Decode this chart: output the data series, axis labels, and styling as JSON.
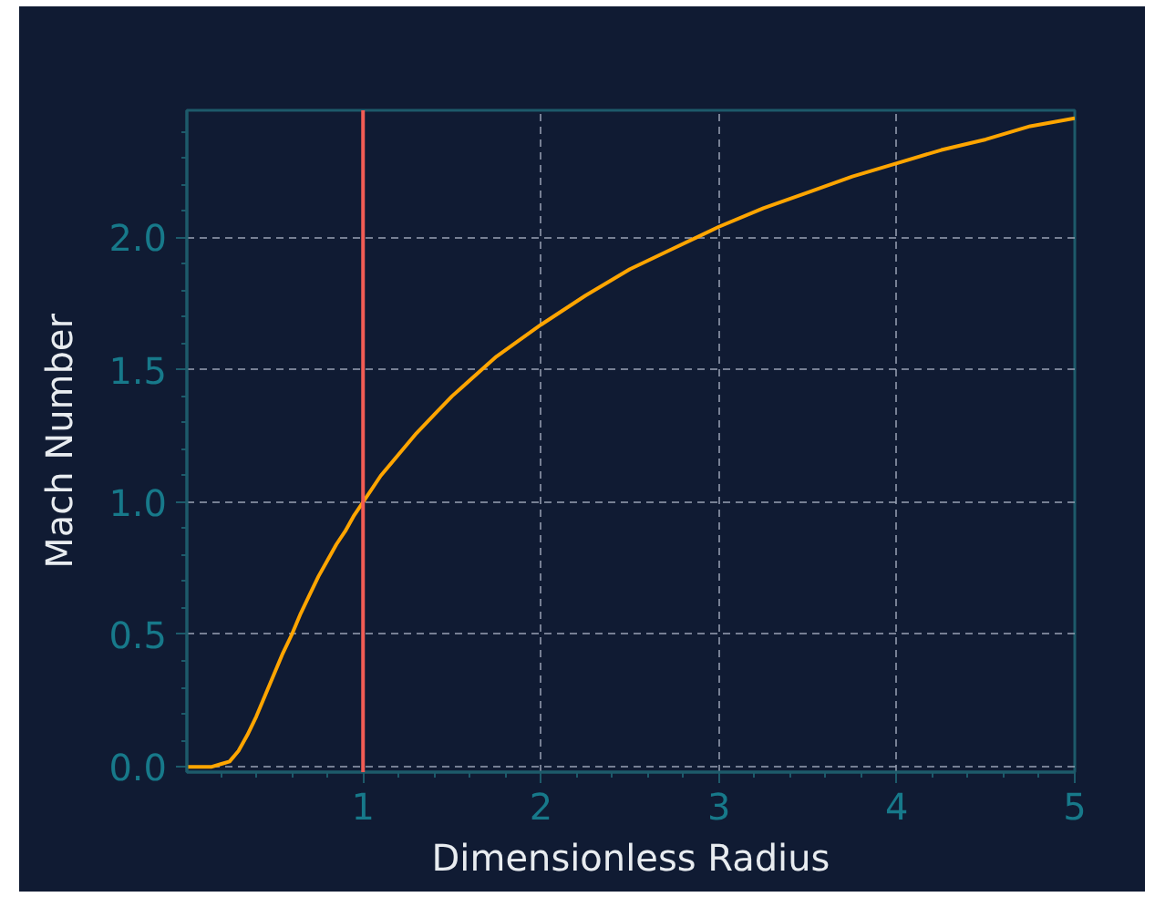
{
  "chart_data": {
    "type": "line",
    "xlabel": "Dimensionless Radius",
    "ylabel": "Mach Number",
    "x": [
      0.01,
      0.05,
      0.1,
      0.15,
      0.2,
      0.25,
      0.3,
      0.35,
      0.4,
      0.45,
      0.5,
      0.55,
      0.6,
      0.65,
      0.7,
      0.75,
      0.8,
      0.85,
      0.9,
      0.95,
      1,
      1.1,
      1.2,
      1.3,
      1.4,
      1.5,
      1.75,
      2,
      2.25,
      2.5,
      2.75,
      3,
      3.25,
      3.5,
      3.75,
      4,
      4.25,
      4.5,
      4.75,
      5
    ],
    "series": [
      {
        "color": "#ffa500",
        "values": [
          0,
          0,
          0,
          0,
          0.01,
          0.02,
          0.06,
          0.12,
          0.19,
          0.27,
          0.35,
          0.43,
          0.5,
          0.58,
          0.65,
          0.72,
          0.78,
          0.84,
          0.89,
          0.95,
          1,
          1.1,
          1.18,
          1.26,
          1.33,
          1.4,
          1.55,
          1.67,
          1.78,
          1.88,
          1.96,
          2.04,
          2.11,
          2.17,
          2.23,
          2.28,
          2.33,
          2.37,
          2.42,
          2.45
        ]
      }
    ],
    "xlim": [
      0.01,
      5
    ],
    "ylim": [
      -0.02,
      2.48
    ],
    "xticks": [
      1,
      2,
      3,
      4,
      5
    ],
    "yticks": [
      {
        "value": 0,
        "label": "0.0"
      },
      0.5,
      {
        "value": 1,
        "label": "1.0"
      },
      1.5,
      {
        "value": 2,
        "label": "2.0"
      }
    ],
    "ref_lines": [
      {
        "axis": "x",
        "value": 1,
        "color": "#f25c54"
      }
    ],
    "grid": true
  }
}
